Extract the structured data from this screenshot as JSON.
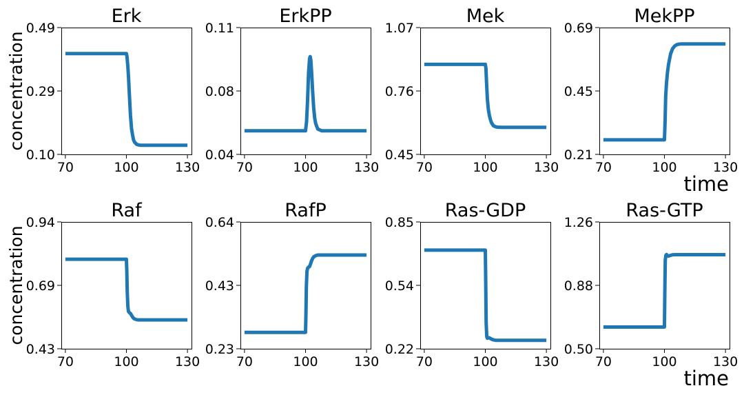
{
  "figure": {
    "ylabel": "concentration",
    "xlabel": "time",
    "line_color": "#1f77b4"
  },
  "chart_data": [
    {
      "type": "line",
      "title": "Erk",
      "ylabel": "concentration",
      "xlabel": "",
      "xlim": [
        68,
        132
      ],
      "ylim": [
        0.1,
        0.49
      ],
      "xticks": [
        "70",
        "100",
        "130"
      ],
      "yticks": [
        "0.10",
        "0.29",
        "0.49"
      ],
      "series": [
        {
          "x": [
            70,
            100,
            100.3,
            100.7,
            101,
            101.5,
            102,
            102.5,
            103,
            103.5,
            104,
            105,
            106,
            107,
            108,
            110,
            113,
            130
          ],
          "y": [
            0.41,
            0.41,
            0.4,
            0.37,
            0.34,
            0.28,
            0.22,
            0.18,
            0.16,
            0.145,
            0.138,
            0.131,
            0.129,
            0.128,
            0.128,
            0.128,
            0.128,
            0.128
          ]
        }
      ]
    },
    {
      "type": "line",
      "title": "ErkPP",
      "ylabel": "",
      "xlabel": "",
      "xlim": [
        68,
        132
      ],
      "ylim": [
        0.04,
        0.11
      ],
      "xticks": [
        "70",
        "100",
        "130"
      ],
      "yticks": [
        "0.04",
        "0.08",
        "0.11"
      ],
      "series": [
        {
          "x": [
            70,
            100,
            100.5,
            101,
            101.5,
            102,
            102.3,
            102.6,
            103,
            103.5,
            104,
            104.5,
            105,
            106,
            107,
            108,
            110,
            130
          ],
          "y": [
            0.053,
            0.053,
            0.058,
            0.07,
            0.085,
            0.093,
            0.094,
            0.092,
            0.085,
            0.075,
            0.066,
            0.06,
            0.057,
            0.054,
            0.0535,
            0.053,
            0.053,
            0.053
          ]
        }
      ]
    },
    {
      "type": "line",
      "title": "Mek",
      "ylabel": "",
      "xlabel": "",
      "xlim": [
        68,
        132
      ],
      "ylim": [
        0.45,
        1.07
      ],
      "xticks": [
        "70",
        "100",
        "130"
      ],
      "yticks": [
        "0.45",
        "0.76",
        "1.07"
      ],
      "series": [
        {
          "x": [
            70,
            100,
            100.3,
            100.6,
            101,
            101.5,
            102,
            102.5,
            103,
            104,
            105,
            106,
            108,
            110,
            130
          ],
          "y": [
            0.89,
            0.89,
            0.87,
            0.8,
            0.72,
            0.67,
            0.64,
            0.62,
            0.605,
            0.59,
            0.585,
            0.583,
            0.582,
            0.582,
            0.582
          ]
        }
      ]
    },
    {
      "type": "line",
      "title": "MekPP",
      "ylabel": "",
      "xlabel": "time",
      "xlim": [
        68,
        132
      ],
      "ylim": [
        0.21,
        0.69
      ],
      "xticks": [
        "70",
        "100",
        "130"
      ],
      "yticks": [
        "0.21",
        "0.45",
        "0.69"
      ],
      "series": [
        {
          "x": [
            70,
            100,
            100.3,
            100.6,
            101,
            101.5,
            102,
            102.5,
            103,
            104,
            105,
            106,
            107,
            108,
            110,
            113,
            130
          ],
          "y": [
            0.265,
            0.265,
            0.33,
            0.43,
            0.48,
            0.52,
            0.55,
            0.57,
            0.59,
            0.61,
            0.62,
            0.625,
            0.627,
            0.628,
            0.628,
            0.628,
            0.628
          ]
        }
      ]
    },
    {
      "type": "line",
      "title": "Raf",
      "ylabel": "concentration",
      "xlabel": "",
      "xlim": [
        68,
        132
      ],
      "ylim": [
        0.43,
        0.94
      ],
      "xticks": [
        "70",
        "100",
        "130"
      ],
      "yticks": [
        "0.43",
        "0.69",
        "0.94"
      ],
      "series": [
        {
          "x": [
            70,
            100,
            100.2,
            100.4,
            100.7,
            101,
            101.5,
            102,
            102.5,
            103,
            103.5,
            104,
            105,
            106,
            108,
            110,
            130
          ],
          "y": [
            0.79,
            0.79,
            0.74,
            0.66,
            0.6,
            0.58,
            0.575,
            0.572,
            0.565,
            0.558,
            0.553,
            0.55,
            0.547,
            0.546,
            0.546,
            0.546,
            0.546
          ]
        }
      ]
    },
    {
      "type": "line",
      "title": "RafP",
      "ylabel": "",
      "xlabel": "",
      "xlim": [
        68,
        132
      ],
      "ylim": [
        0.23,
        0.64
      ],
      "xticks": [
        "70",
        "100",
        "130"
      ],
      "yticks": [
        "0.23",
        "0.43",
        "0.64"
      ],
      "series": [
        {
          "x": [
            70,
            100,
            100.2,
            100.4,
            100.7,
            101,
            101.5,
            102,
            102.5,
            103,
            103.5,
            104,
            105,
            106,
            108,
            110,
            130
          ],
          "y": [
            0.283,
            0.283,
            0.34,
            0.43,
            0.48,
            0.49,
            0.494,
            0.496,
            0.505,
            0.515,
            0.522,
            0.527,
            0.531,
            0.533,
            0.533,
            0.533,
            0.533
          ]
        }
      ]
    },
    {
      "type": "line",
      "title": "Ras-GDP",
      "ylabel": "",
      "xlabel": "",
      "xlim": [
        68,
        132
      ],
      "ylim": [
        0.22,
        0.85
      ],
      "xticks": [
        "70",
        "100",
        "130"
      ],
      "yticks": [
        "0.22",
        "0.54",
        "0.85"
      ],
      "series": [
        {
          "x": [
            70,
            100,
            100.2,
            100.4,
            100.7,
            101,
            101.5,
            102,
            103,
            104,
            105,
            106,
            108,
            130
          ],
          "y": [
            0.71,
            0.71,
            0.55,
            0.35,
            0.28,
            0.272,
            0.275,
            0.274,
            0.268,
            0.264,
            0.262,
            0.262,
            0.262,
            0.262
          ]
        }
      ]
    },
    {
      "type": "line",
      "title": "Ras-GTP",
      "ylabel": "",
      "xlabel": "time",
      "xlim": [
        68,
        132
      ],
      "ylim": [
        0.5,
        1.26
      ],
      "xticks": [
        "70",
        "100",
        "130"
      ],
      "yticks": [
        "0.50",
        "0.88",
        "1.26"
      ],
      "series": [
        {
          "x": [
            70,
            100,
            100.2,
            100.4,
            100.7,
            101,
            101.5,
            102,
            103,
            104,
            105,
            106,
            108,
            130
          ],
          "y": [
            0.63,
            0.63,
            0.85,
            1.03,
            1.06,
            1.065,
            1.058,
            1.055,
            1.06,
            1.063,
            1.064,
            1.064,
            1.064,
            1.064
          ]
        }
      ]
    }
  ]
}
